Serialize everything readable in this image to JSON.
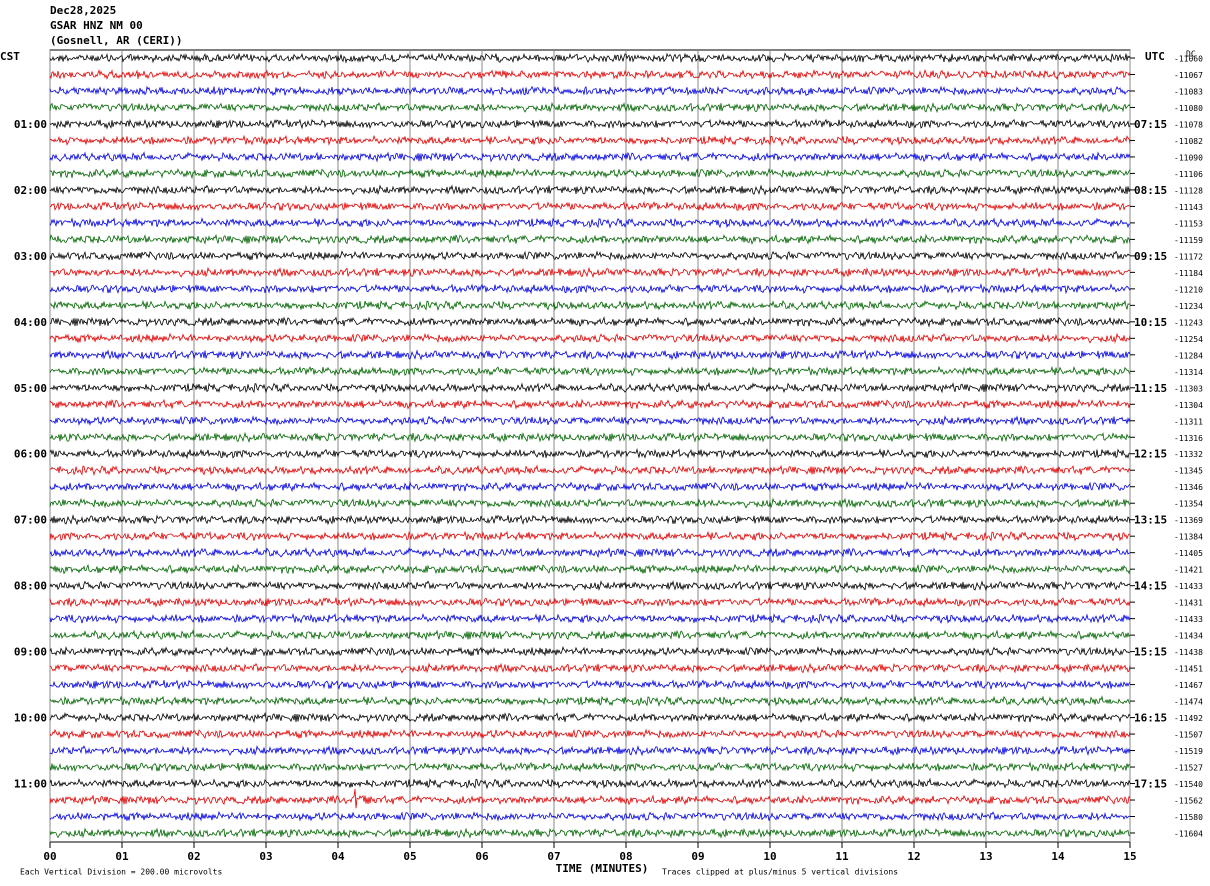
{
  "header": {
    "date": "Dec28,2025",
    "station": "GSAR HNZ NM 00",
    "location": "(Gosnell, AR (CERI))"
  },
  "left_label": "CST",
  "right_label": "UTC",
  "dc_label": "DC",
  "left_times": [
    "01:00",
    "02:00",
    "03:00",
    "04:00",
    "05:00",
    "06:00",
    "07:00",
    "08:00",
    "09:00",
    "10:00",
    "11:00"
  ],
  "right_times": [
    "07:15",
    "08:15",
    "09:15",
    "10:15",
    "11:15",
    "12:15",
    "13:15",
    "14:15",
    "15:15",
    "16:15",
    "17:15"
  ],
  "dc_values": [
    -11060,
    -11067,
    -11083,
    -11080,
    -11078,
    -11082,
    -11090,
    -11106,
    -11128,
    -11143,
    -11153,
    -11159,
    -11172,
    -11184,
    -11210,
    -11234,
    -11243,
    -11254,
    -11284,
    -11314,
    -11303,
    -11304,
    -11311,
    -11316,
    -11332,
    -11345,
    -11346,
    -11354,
    -11369,
    -11384,
    -11405,
    -11421,
    -11433,
    -11431,
    -11433,
    -11434,
    -11438,
    -11451,
    -11467,
    -11474,
    -11492,
    -11507,
    -11519,
    -11527,
    -11540,
    -11562,
    -11580,
    -11604
  ],
  "x_ticks": [
    "00",
    "01",
    "02",
    "03",
    "04",
    "05",
    "06",
    "07",
    "08",
    "09",
    "10",
    "11",
    "12",
    "13",
    "14",
    "15"
  ],
  "x_axis_label": "TIME (MINUTES)",
  "footer_left": "Each Vertical Division =  200.00 microvolts",
  "footer_right": "Traces clipped at plus/minus 5 vertical divisions",
  "trace_colors": [
    "#000000",
    "#e00000",
    "#0000e0",
    "#006400"
  ]
}
